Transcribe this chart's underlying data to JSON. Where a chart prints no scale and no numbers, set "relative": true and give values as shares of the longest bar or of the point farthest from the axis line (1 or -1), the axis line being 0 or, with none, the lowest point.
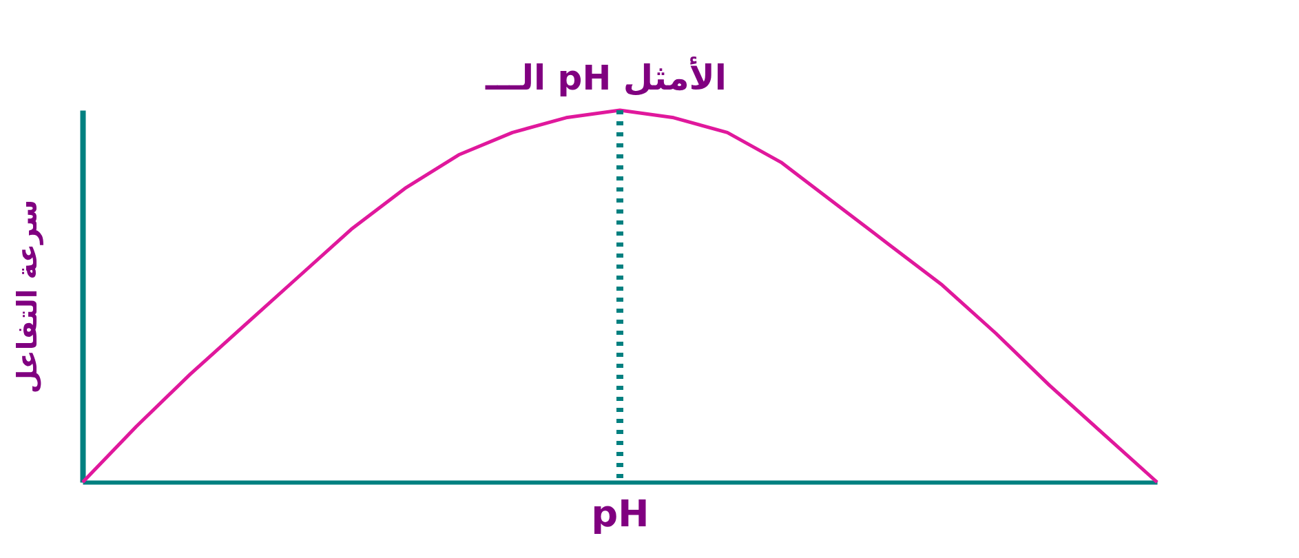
{
  "chart_data": {
    "type": "line",
    "relative": true,
    "xlabel": "pH",
    "ylabel": "سرعة التفاعل",
    "categories": [
      null,
      null,
      null,
      null,
      null,
      null,
      null,
      null,
      null,
      null,
      null,
      null,
      null,
      null,
      null,
      null,
      null,
      null,
      null,
      null,
      null
    ],
    "series": [
      {
        "color": "#e0189c",
        "values": [
          0,
          0.15,
          0.29,
          0.42,
          0.55,
          0.68,
          0.79,
          0.88,
          0.94,
          0.98,
          1,
          0.98,
          0.94,
          0.86,
          0.75,
          0.64,
          0.53,
          0.4,
          0.26,
          0.13,
          0
        ]
      }
    ],
    "annotations": [
      "الـــ pH الأمثل"
    ],
    "grid": false,
    "tick_labels": false,
    "marker": "none",
    "line_style": "solid"
  }
}
